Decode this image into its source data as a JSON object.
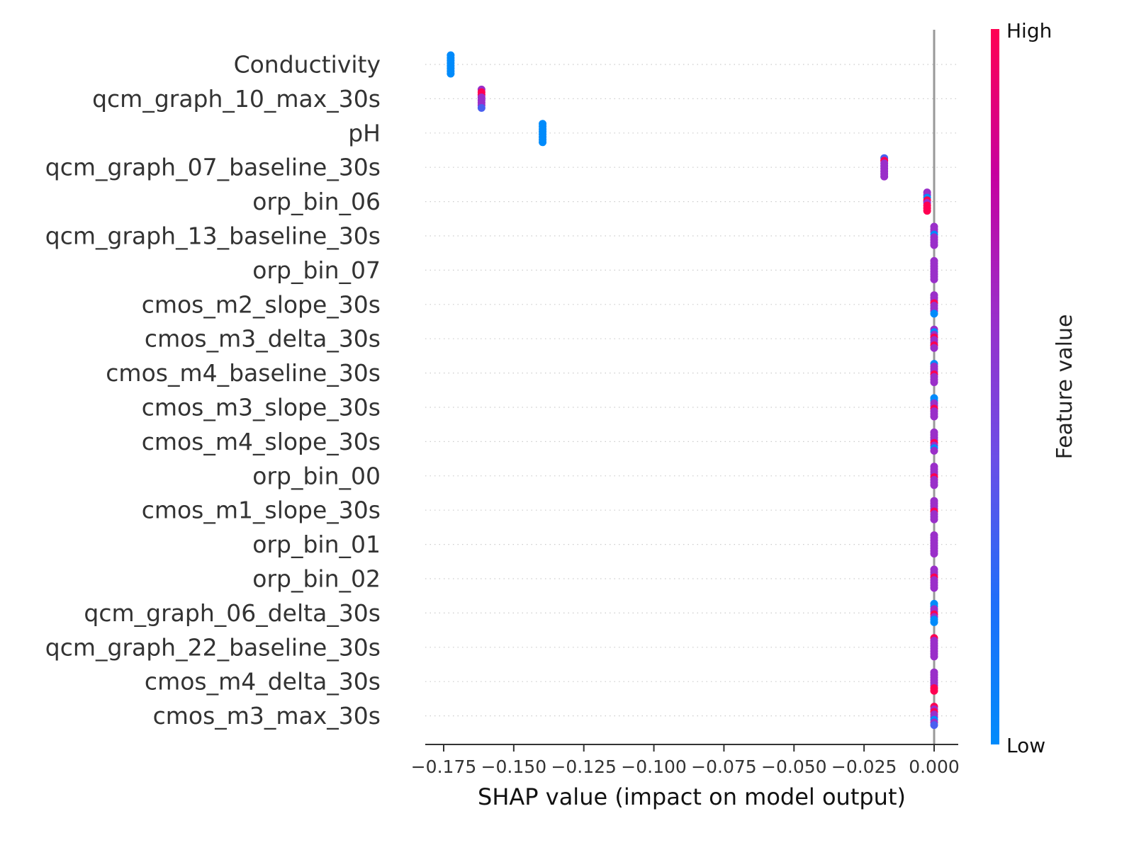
{
  "chart_data": {
    "type": "scatter",
    "subtype": "shap-beeswarm",
    "xlabel": "SHAP value (impact on model output)",
    "xlim": [
      -0.18,
      0.008
    ],
    "x_ticks": [
      -0.175,
      -0.15,
      -0.125,
      -0.1,
      -0.075,
      -0.05,
      -0.025,
      0.0
    ],
    "x_tick_labels": [
      "−0.175",
      "−0.150",
      "−0.125",
      "−0.100",
      "−0.075",
      "−0.050",
      "−0.025",
      "0.000"
    ],
    "zero_line": 0.0,
    "colorbar": {
      "title": "Feature value",
      "high_label": "High",
      "low_label": "Low",
      "low_color": "#008bfb",
      "high_color": "#ff0052"
    },
    "features": [
      {
        "name": "Conductivity",
        "shap": -0.1725,
        "colors": [
          "low",
          "low",
          "low",
          "low",
          "low",
          "low",
          "low",
          "low"
        ]
      },
      {
        "name": "qcm_graph_10_max_30s",
        "shap": -0.1615,
        "colors": [
          "mid",
          "high",
          "high",
          "mid",
          "mid",
          "mid",
          "mid",
          "lowmid"
        ]
      },
      {
        "name": "pH",
        "shap": -0.1397,
        "colors": [
          "low",
          "low",
          "low",
          "low",
          "low",
          "low",
          "low",
          "low"
        ]
      },
      {
        "name": "qcm_graph_07_baseline_30s",
        "shap": -0.0178,
        "colors": [
          "lowmid",
          "high",
          "mid",
          "mid",
          "mid",
          "mid",
          "mid",
          "mid"
        ]
      },
      {
        "name": "orp_bin_06",
        "shap": -0.0025,
        "colors": [
          "mid",
          "mid",
          "low",
          "high",
          "mid",
          "high",
          "high",
          "high"
        ]
      },
      {
        "name": "qcm_graph_13_baseline_30s",
        "shap": 0.0,
        "colors": [
          "mid",
          "mid",
          "mid",
          "low",
          "mid",
          "mid",
          "mid",
          "mid"
        ]
      },
      {
        "name": "orp_bin_07",
        "shap": 0.0,
        "colors": [
          "mid",
          "mid",
          "mid",
          "mid",
          "mid",
          "mid",
          "mid",
          "mid"
        ]
      },
      {
        "name": "cmos_m2_slope_30s",
        "shap": 0.0,
        "colors": [
          "mid",
          "mid",
          "mid",
          "high",
          "mid",
          "mid",
          "mid",
          "low"
        ]
      },
      {
        "name": "cmos_m3_delta_30s",
        "shap": 0.0,
        "colors": [
          "mid",
          "low",
          "mid",
          "high",
          "mid",
          "mid",
          "high",
          "mid"
        ]
      },
      {
        "name": "cmos_m4_baseline_30s",
        "shap": 0.0,
        "colors": [
          "low",
          "mid",
          "mid",
          "mid",
          "high",
          "mid",
          "mid",
          "mid"
        ]
      },
      {
        "name": "cmos_m3_slope_30s",
        "shap": 0.0,
        "colors": [
          "low",
          "low",
          "mid",
          "mid",
          "high",
          "mid",
          "mid",
          "mid"
        ]
      },
      {
        "name": "cmos_m4_slope_30s",
        "shap": 0.0,
        "colors": [
          "mid",
          "mid",
          "mid",
          "mid",
          "high",
          "mid",
          "low",
          "mid"
        ]
      },
      {
        "name": "orp_bin_00",
        "shap": 0.0,
        "colors": [
          "mid",
          "mid",
          "mid",
          "mid",
          "high",
          "mid",
          "mid",
          "mid"
        ]
      },
      {
        "name": "cmos_m1_slope_30s",
        "shap": 0.0,
        "colors": [
          "mid",
          "mid",
          "mid",
          "mid",
          "high",
          "mid",
          "mid",
          "mid"
        ]
      },
      {
        "name": "orp_bin_01",
        "shap": 0.0,
        "colors": [
          "mid",
          "mid",
          "mid",
          "mid",
          "mid",
          "mid",
          "mid",
          "mid"
        ]
      },
      {
        "name": "orp_bin_02",
        "shap": 0.0,
        "colors": [
          "mid",
          "mid",
          "mid",
          "high",
          "mid",
          "mid",
          "mid",
          "mid"
        ]
      },
      {
        "name": "qcm_graph_06_delta_30s",
        "shap": 0.0,
        "colors": [
          "low",
          "low",
          "mid",
          "mid",
          "high",
          "mid",
          "low",
          "low"
        ]
      },
      {
        "name": "qcm_graph_22_baseline_30s",
        "shap": 0.0,
        "colors": [
          "high",
          "mid",
          "mid",
          "mid",
          "mid",
          "mid",
          "mid",
          "mid"
        ]
      },
      {
        "name": "cmos_m4_delta_30s",
        "shap": 0.0,
        "colors": [
          "mid",
          "mid",
          "mid",
          "mid",
          "mid",
          "mid",
          "high",
          "high"
        ]
      },
      {
        "name": "cmos_m3_max_30s",
        "shap": 0.0,
        "colors": [
          "high",
          "mid",
          "high",
          "mid",
          "mid",
          "low",
          "mid",
          "lowmid"
        ]
      }
    ],
    "point_colors": {
      "low": "#008bfb",
      "lowmid": "#4a5ff0",
      "mid": "#9a2fc9",
      "high": "#ff0052"
    }
  }
}
